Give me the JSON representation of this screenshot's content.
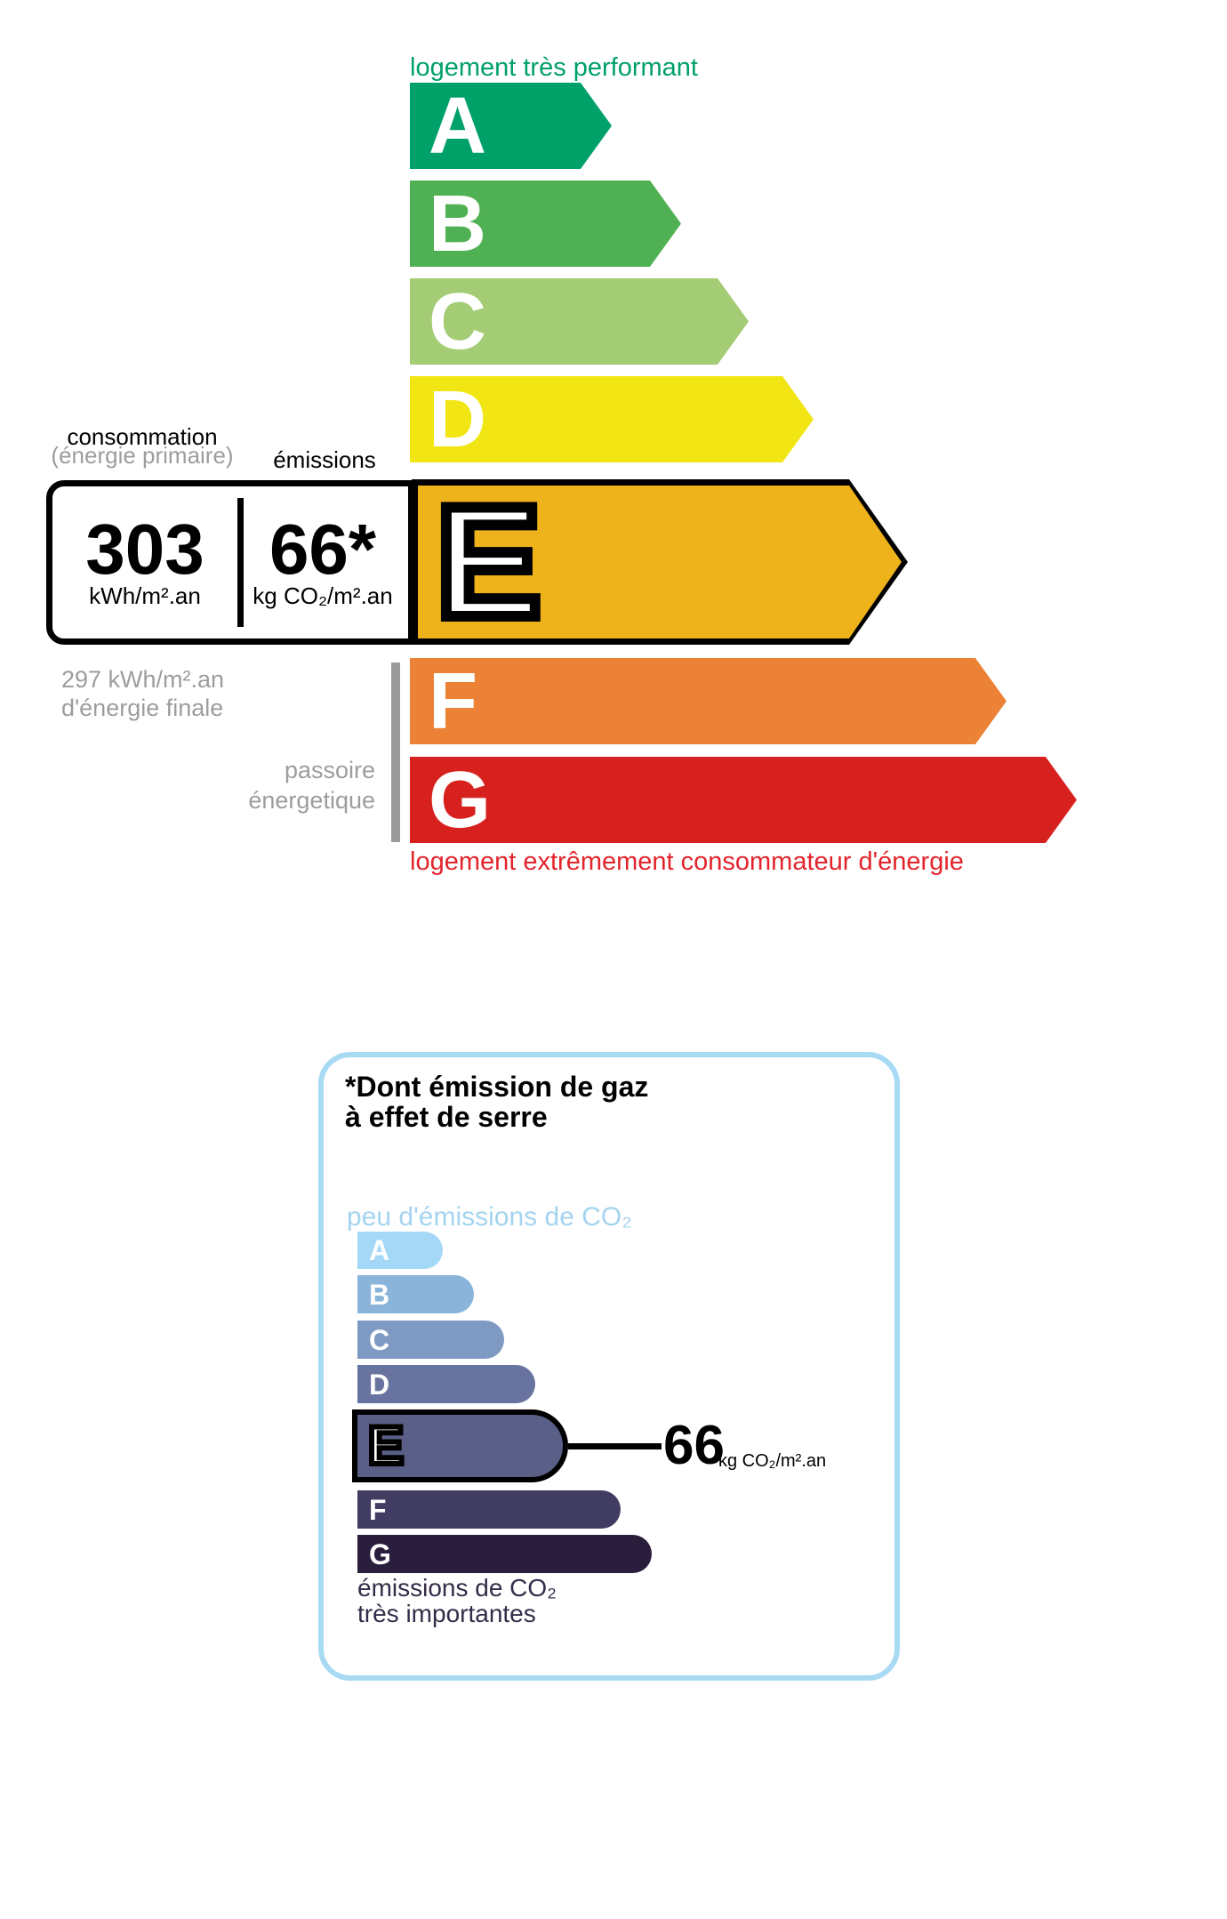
{
  "colors": {
    "label_good": "#00a069",
    "label_bad": "#e3242b",
    "muted_gray": "#9d9d9c",
    "divider_gray": "#9b9b9b",
    "black": "#000000",
    "panel_border": "#a8daf4",
    "co2_top_label": "#a4d4f0",
    "co2_dark_text": "#342c49"
  },
  "energy_scale": {
    "top_label": "logement très performant",
    "bottom_label": "logement extrêmement consommateur d'énergie",
    "selected_class": "E",
    "classes": [
      {
        "letter": "A",
        "color": "#00a069"
      },
      {
        "letter": "B",
        "color": "#4fb153"
      },
      {
        "letter": "C",
        "color": "#a3cc74"
      },
      {
        "letter": "D",
        "color": "#f1e614"
      },
      {
        "letter": "E",
        "color": "#eeb31b"
      },
      {
        "letter": "F",
        "color": "#ec8235"
      },
      {
        "letter": "G",
        "color": "#d7211e"
      }
    ],
    "consumption": {
      "header": "consommation",
      "subheader": "(énergie primaire)",
      "value": "303",
      "unit": "kWh/m².an"
    },
    "emissions": {
      "header": "émissions",
      "value": "66*",
      "unit": "kg CO₂/m².an"
    },
    "final_energy": "297 kWh/m².an\nd'énergie finale",
    "passoire_label": "passoire\nénergetique"
  },
  "co2_scale": {
    "title": "*Dont émission de gaz\nà effet de serre",
    "top_label": "peu d'émissions de CO₂",
    "bottom_label": "émissions de CO₂\ntrès importantes",
    "selected_class": "E",
    "value": "66",
    "unit": "kg CO₂/m².an",
    "classes": [
      {
        "letter": "A",
        "color": "#a5d8f6"
      },
      {
        "letter": "B",
        "color": "#8ab4d9"
      },
      {
        "letter": "C",
        "color": "#7e9ac3"
      },
      {
        "letter": "D",
        "color": "#68749f"
      },
      {
        "letter": "E",
        "color": "#5a5f88"
      },
      {
        "letter": "F",
        "color": "#403c62"
      },
      {
        "letter": "G",
        "color": "#2a1e3d"
      }
    ]
  }
}
